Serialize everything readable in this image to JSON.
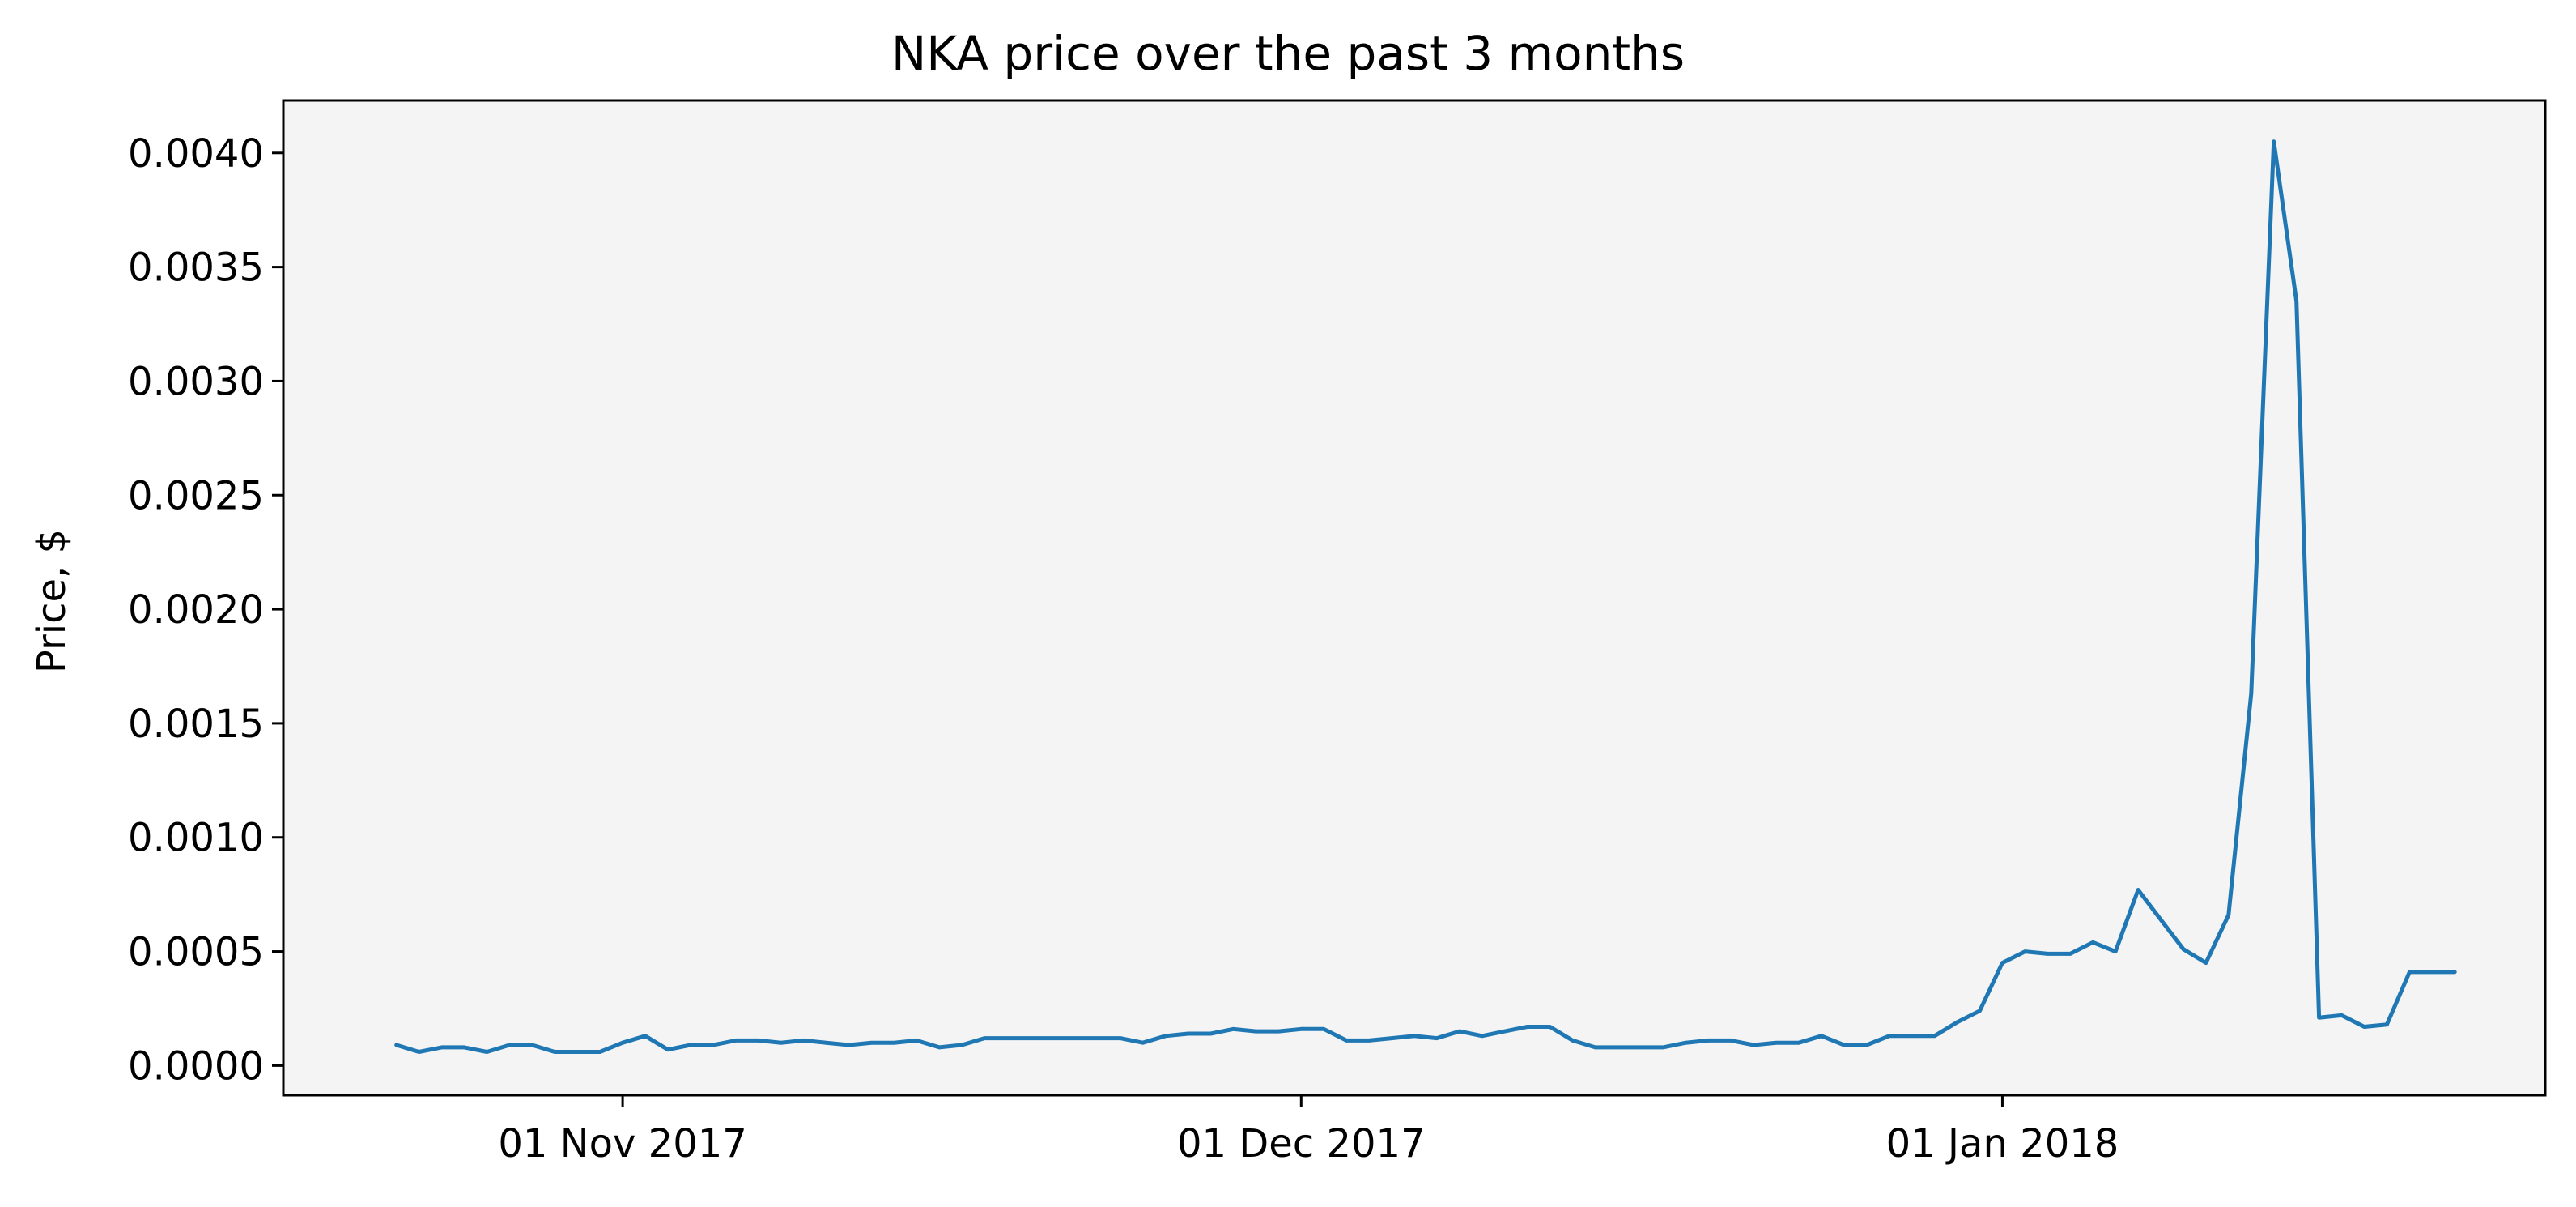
{
  "chart_data": {
    "type": "line",
    "title": "NKA price over the past 3 months",
    "xlabel": "",
    "ylabel": "Price, $",
    "x_axis_kind": "date",
    "xlim": [
      "2017-10-17",
      "2018-01-25"
    ],
    "ylim": [
      -0.00013,
      0.00423
    ],
    "x_ticks": [
      {
        "value": "2017-11-01",
        "label": "01 Nov 2017"
      },
      {
        "value": "2017-12-01",
        "label": "01 Dec 2017"
      },
      {
        "value": "2018-01-01",
        "label": "01 Jan 2018"
      }
    ],
    "y_ticks": [
      {
        "value": 0.0,
        "label": "0.0000"
      },
      {
        "value": 0.0005,
        "label": "0.0005"
      },
      {
        "value": 0.001,
        "label": "0.0010"
      },
      {
        "value": 0.0015,
        "label": "0.0015"
      },
      {
        "value": 0.002,
        "label": "0.0020"
      },
      {
        "value": 0.0025,
        "label": "0.0025"
      },
      {
        "value": 0.003,
        "label": "0.0030"
      },
      {
        "value": 0.0035,
        "label": "0.0035"
      },
      {
        "value": 0.004,
        "label": "0.0040"
      }
    ],
    "grid": false,
    "plot_background": "#f4f4f4",
    "series": [
      {
        "color": "#1f77b4",
        "x": [
          "2017-10-22",
          "2017-10-23",
          "2017-10-24",
          "2017-10-25",
          "2017-10-26",
          "2017-10-27",
          "2017-10-28",
          "2017-10-29",
          "2017-10-30",
          "2017-10-31",
          "2017-11-01",
          "2017-11-02",
          "2017-11-03",
          "2017-11-04",
          "2017-11-05",
          "2017-11-06",
          "2017-11-07",
          "2017-11-08",
          "2017-11-09",
          "2017-11-10",
          "2017-11-11",
          "2017-11-12",
          "2017-11-13",
          "2017-11-14",
          "2017-11-15",
          "2017-11-16",
          "2017-11-17",
          "2017-11-18",
          "2017-11-19",
          "2017-11-20",
          "2017-11-21",
          "2017-11-22",
          "2017-11-23",
          "2017-11-24",
          "2017-11-25",
          "2017-11-26",
          "2017-11-27",
          "2017-11-28",
          "2017-11-29",
          "2017-11-30",
          "2017-12-01",
          "2017-12-02",
          "2017-12-03",
          "2017-12-04",
          "2017-12-05",
          "2017-12-06",
          "2017-12-07",
          "2017-12-08",
          "2017-12-09",
          "2017-12-10",
          "2017-12-11",
          "2017-12-12",
          "2017-12-13",
          "2017-12-14",
          "2017-12-15",
          "2017-12-16",
          "2017-12-17",
          "2017-12-18",
          "2017-12-19",
          "2017-12-20",
          "2017-12-21",
          "2017-12-22",
          "2017-12-23",
          "2017-12-24",
          "2017-12-25",
          "2017-12-26",
          "2017-12-27",
          "2017-12-28",
          "2017-12-29",
          "2017-12-30",
          "2017-12-31",
          "2018-01-01",
          "2018-01-02",
          "2018-01-03",
          "2018-01-04",
          "2018-01-05",
          "2018-01-06",
          "2018-01-07",
          "2018-01-08",
          "2018-01-09",
          "2018-01-10",
          "2018-01-11",
          "2018-01-12",
          "2018-01-13",
          "2018-01-14",
          "2018-01-15",
          "2018-01-16",
          "2018-01-17",
          "2018-01-18",
          "2018-01-19",
          "2018-01-20",
          "2018-01-21"
        ],
        "values": [
          9e-05,
          6e-05,
          8e-05,
          8e-05,
          6e-05,
          9e-05,
          9e-05,
          6e-05,
          6e-05,
          6e-05,
          0.0001,
          0.00013,
          7e-05,
          9e-05,
          9e-05,
          0.00011,
          0.00011,
          0.0001,
          0.00011,
          0.0001,
          9e-05,
          0.0001,
          0.0001,
          0.00011,
          8e-05,
          9e-05,
          0.00012,
          0.00012,
          0.00012,
          0.00012,
          0.00012,
          0.00012,
          0.00012,
          0.0001,
          0.00013,
          0.00014,
          0.00014,
          0.00016,
          0.00015,
          0.00015,
          0.00016,
          0.00016,
          0.00011,
          0.00011,
          0.00012,
          0.00013,
          0.00012,
          0.00015,
          0.00013,
          0.00015,
          0.00017,
          0.00017,
          0.00011,
          8e-05,
          8e-05,
          8e-05,
          8e-05,
          0.0001,
          0.00011,
          0.00011,
          9e-05,
          0.0001,
          0.0001,
          0.00013,
          9e-05,
          9e-05,
          0.00013,
          0.00013,
          0.00013,
          0.00019,
          0.00024,
          0.00045,
          0.0005,
          0.00049,
          0.00049,
          0.00054,
          0.0005,
          0.00077,
          0.00064,
          0.00051,
          0.00045,
          0.00066,
          0.00163,
          0.00405,
          0.00335,
          0.00021,
          0.00022,
          0.00017,
          0.00018,
          0.00041,
          0.00041,
          0.00041
        ]
      }
    ]
  }
}
